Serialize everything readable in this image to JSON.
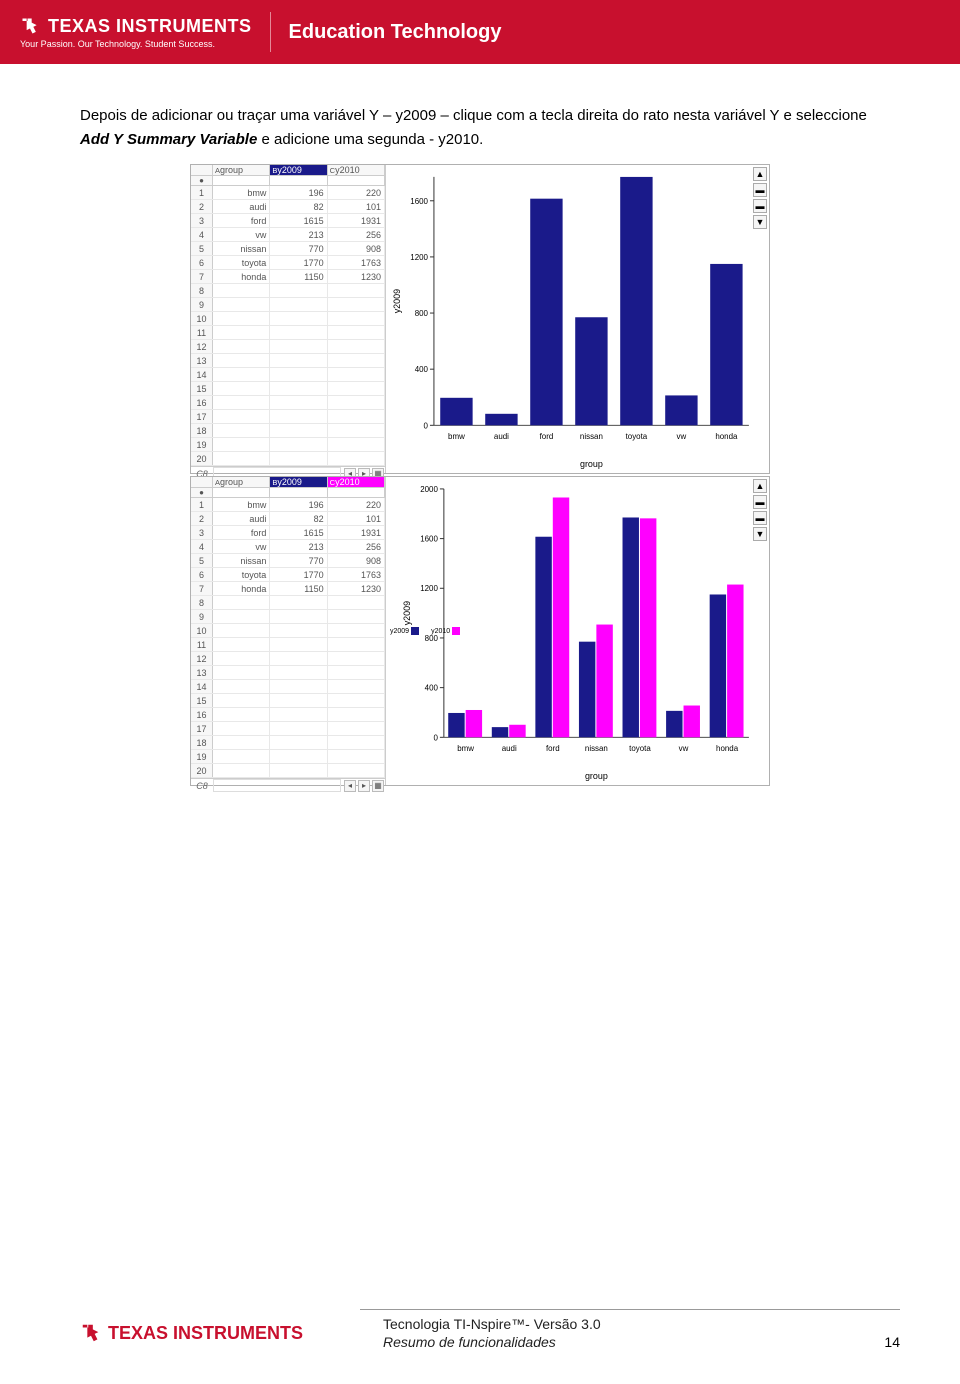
{
  "banner": {
    "brand": "TEXAS INSTRUMENTS",
    "tagline": "Your Passion. Our Technology. Student Success.",
    "section": "Education Technology"
  },
  "paragraph": {
    "p1": "Depois de adicionar ou traçar uma variável Y – y2009 – clique com a tecla direita do rato nesta variável Y e seleccione ",
    "em": "Add Y Summary Variable",
    "p2": " e adicione uma segunda - y2010."
  },
  "table": {
    "colA": "group",
    "colB": "y2009",
    "colC": "y2010",
    "rows": [
      [
        "bmw",
        "196",
        "220"
      ],
      [
        "audi",
        "82",
        "101"
      ],
      [
        "ford",
        "1615",
        "1931"
      ],
      [
        "vw",
        "213",
        "256"
      ],
      [
        "nissan",
        "770",
        "908"
      ],
      [
        "toyota",
        "1770",
        "1763"
      ],
      [
        "honda",
        "1150",
        "1230"
      ]
    ],
    "emptyRows": 13,
    "footLabel": "C8"
  },
  "chart1": {
    "type": "bar",
    "categories": [
      "bmw",
      "audi",
      "ford",
      "nissan",
      "toyota",
      "vw",
      "honda"
    ],
    "y2009": [
      196,
      82,
      1615,
      770,
      1770,
      213,
      1150
    ],
    "color": "#1a1a8a",
    "ylabel": "y2009",
    "xlabel": "group",
    "ylim": [
      0,
      1770
    ],
    "yticks": [
      0,
      400,
      800,
      1200,
      1600
    ],
    "plot_bg": "#ffffff",
    "axis_color": "#333333",
    "tick_fontsize": 8,
    "bar_width": 0.72
  },
  "chart2": {
    "type": "grouped-bar",
    "categories": [
      "bmw",
      "audi",
      "ford",
      "nissan",
      "toyota",
      "vw",
      "honda"
    ],
    "series": [
      {
        "name": "y2009",
        "color": "#1a1a8a",
        "values": [
          196,
          82,
          1615,
          770,
          1770,
          213,
          1150
        ]
      },
      {
        "name": "y2010",
        "color": "#ff00ff",
        "values": [
          220,
          101,
          1931,
          908,
          1763,
          256,
          1230
        ]
      }
    ],
    "ylabel": "y2009",
    "xlabel": "group",
    "legend": [
      "y2010",
      "y2009"
    ],
    "legend_colors": [
      "#ff00ff",
      "#1a1a8a"
    ],
    "ylim": [
      0,
      2000
    ],
    "yticks": [
      0,
      400,
      800,
      1200,
      1600,
      2000
    ],
    "plot_bg": "#ffffff",
    "axis_color": "#333333",
    "tick_fontsize": 8,
    "bar_width": 0.36
  },
  "footer": {
    "brand": "TEXAS INSTRUMENTS",
    "line1": "Tecnologia TI-Nspire™- Versão 3.0",
    "line2": "Resumo de funcionalidades",
    "page": "14"
  }
}
